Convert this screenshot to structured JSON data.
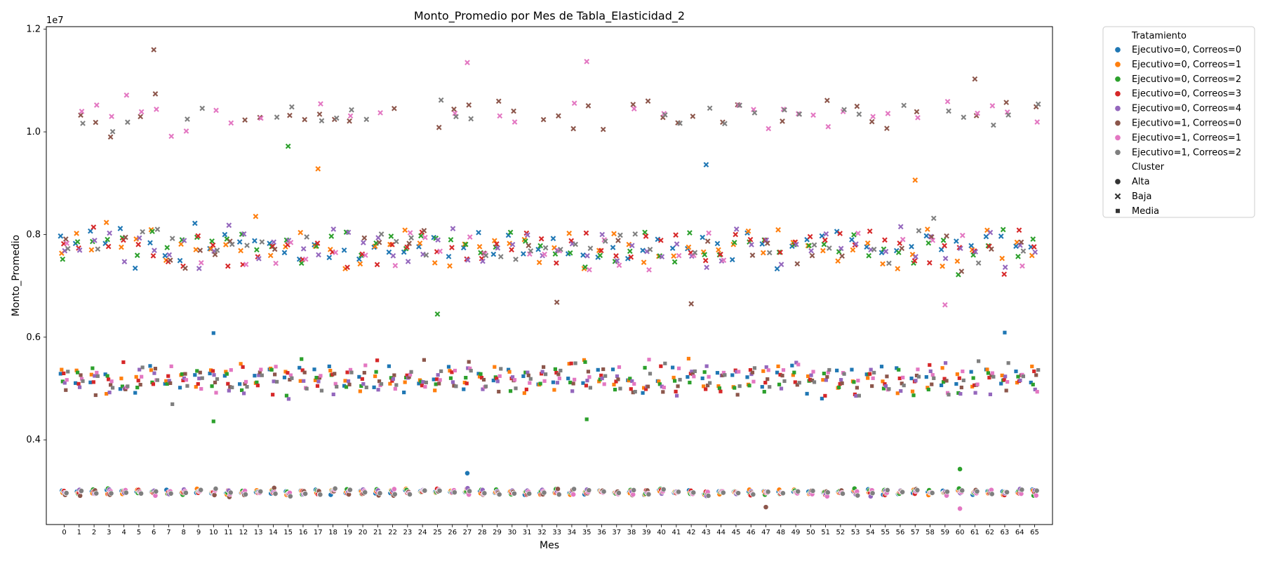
{
  "chart_data": {
    "type": "scatter",
    "title": "Monto_Promedio por Mes de Tabla_Elasticidad_2",
    "xlabel": "Mes",
    "ylabel": "Monto_Promedio",
    "y_offset_label": "1e7",
    "x_categories": [
      "0",
      "1",
      "2",
      "3",
      "4",
      "5",
      "6",
      "7",
      "8",
      "9",
      "10",
      "11",
      "12",
      "13",
      "14",
      "15",
      "16",
      "17",
      "18",
      "19",
      "20",
      "21",
      "22",
      "23",
      "24",
      "25",
      "26",
      "27",
      "28",
      "29",
      "30",
      "31",
      "32",
      "33",
      "34",
      "35",
      "36",
      "37",
      "38",
      "39",
      "40",
      "41",
      "42",
      "43",
      "44",
      "45",
      "46",
      "47",
      "48",
      "49",
      "50",
      "51",
      "52",
      "53",
      "54",
      "55",
      "56",
      "57",
      "58",
      "59",
      "60",
      "61",
      "62",
      "63",
      "64",
      "65"
    ],
    "xlim": [
      -1.2,
      66.2
    ],
    "ylim": [
      2.35,
      12.05
    ],
    "ylim_units": "x 1e7",
    "y_ticks": [
      0.4,
      0.6,
      0.8,
      1.0,
      1.2
    ],
    "y_tick_labels": [
      "0.4",
      "0.6",
      "0.8",
      "1.0",
      "1.2"
    ],
    "grid": false,
    "legend_placement": "outside-right",
    "legend": {
      "hue_title": "Tratamiento",
      "style_title": "Cluster",
      "hue_entries": [
        {
          "name": "Ejecutivo=0, Correos=0",
          "color": "#1f77b4"
        },
        {
          "name": "Ejecutivo=0, Correos=1",
          "color": "#ff7f0e"
        },
        {
          "name": "Ejecutivo=0, Correos=2",
          "color": "#2ca02c"
        },
        {
          "name": "Ejecutivo=0, Correos=3",
          "color": "#d62728"
        },
        {
          "name": "Ejecutivo=0, Correos=4",
          "color": "#9467bd"
        },
        {
          "name": "Ejecutivo=1, Correos=0",
          "color": "#8c564b"
        },
        {
          "name": "Ejecutivo=1, Correos=1",
          "color": "#e377c2"
        },
        {
          "name": "Ejecutivo=1, Correos=2",
          "color": "#7f7f7f"
        }
      ],
      "style_entries": [
        {
          "name": "Alta",
          "marker": "circle"
        },
        {
          "name": "Baja",
          "marker": "x"
        },
        {
          "name": "Media",
          "marker": "square"
        }
      ]
    },
    "cluster_centers_1e6": {
      "Alta": 29.8,
      "Media": 51.8,
      "Baja_lower": 77.5,
      "Baja_upper": 103.5
    },
    "notable_points_1e7": [
      {
        "mes": 6,
        "series": "Ejecutivo=1, Correos=0",
        "cluster": "Baja",
        "y": 1.16
      },
      {
        "mes": 27,
        "series": "Ejecutivo=1, Correos=1",
        "cluster": "Baja",
        "y": 1.135
      },
      {
        "mes": 35,
        "series": "Ejecutivo=1, Correos=1",
        "cluster": "Baja",
        "y": 1.137
      },
      {
        "mes": 61,
        "series": "Ejecutivo=1, Correos=0",
        "cluster": "Baja",
        "y": 1.103
      },
      {
        "mes": 10,
        "series": "Ejecutivo=0, Correos=0",
        "cluster": "Media",
        "y": 0.608
      },
      {
        "mes": 63,
        "series": "Ejecutivo=0, Correos=0",
        "cluster": "Media",
        "y": 0.609
      },
      {
        "mes": 10,
        "series": "Ejecutivo=0, Correos=2",
        "cluster": "Media",
        "y": 0.436
      },
      {
        "mes": 35,
        "series": "Ejecutivo=0, Correos=2",
        "cluster": "Media",
        "y": 0.44
      },
      {
        "mes": 60,
        "series": "Ejecutivo=0, Correos=2",
        "cluster": "Alta",
        "y": 0.343
      },
      {
        "mes": 27,
        "series": "Ejecutivo=0, Correos=0",
        "cluster": "Alta",
        "y": 0.335
      },
      {
        "mes": 47,
        "series": "Ejecutivo=1, Correos=0",
        "cluster": "Alta",
        "y": 0.269
      },
      {
        "mes": 60,
        "series": "Ejecutivo=1, Correos=1",
        "cluster": "Alta",
        "y": 0.266
      },
      {
        "mes": 43,
        "series": "Ejecutivo=0, Correos=0",
        "cluster": "Baja",
        "y": 0.936
      },
      {
        "mes": 17,
        "series": "Ejecutivo=0, Correos=1",
        "cluster": "Baja",
        "y": 0.928
      },
      {
        "mes": 57,
        "series": "Ejecutivo=0, Correos=1",
        "cluster": "Baja",
        "y": 0.906
      },
      {
        "mes": 15,
        "series": "Ejecutivo=0, Correos=2",
        "cluster": "Baja",
        "y": 0.972
      },
      {
        "mes": 33,
        "series": "Ejecutivo=1, Correos=0",
        "cluster": "Baja",
        "y": 0.668
      },
      {
        "mes": 42,
        "series": "Ejecutivo=1, Correos=0",
        "cluster": "Baja",
        "y": 0.665
      },
      {
        "mes": 59,
        "series": "Ejecutivo=1, Correos=1",
        "cluster": "Baja",
        "y": 0.663
      },
      {
        "mes": 25,
        "series": "Ejecutivo=0, Correos=2",
        "cluster": "Baja",
        "y": 0.645
      }
    ]
  }
}
